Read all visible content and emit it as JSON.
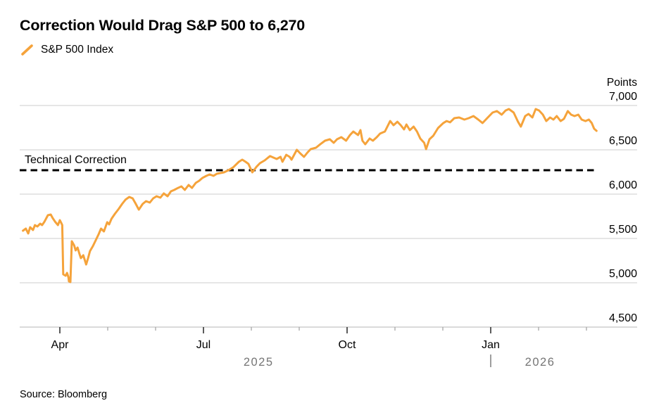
{
  "header": {
    "title": "Correction Would Drag S&P 500 to 6,270",
    "legend": {
      "series_label": "S&P 500 Index",
      "swatch_color": "#F5A33B"
    }
  },
  "footer": {
    "source": "Source: Bloomberg"
  },
  "colors": {
    "line": "#F5A33B",
    "grid": "#d7d7d7",
    "axis_line": "#c3c3c3",
    "tick_major": "#333333",
    "tick_minor": "#a8a8a8",
    "year_text": "#757575",
    "text": "#000000",
    "reference": "#000000"
  },
  "chart_data": {
    "type": "line",
    "title": "Correction Would Drag S&P 500 to 6,270",
    "y_axis": {
      "unit_label": "Points",
      "ticks": [
        7000,
        6500,
        6000,
        5500,
        5000,
        4500
      ],
      "tick_labels": [
        "7,000",
        "6,500",
        "6,000",
        "5,500",
        "5,000",
        "4,500"
      ],
      "ylim": [
        4500,
        7000
      ],
      "grid": "horizontal"
    },
    "x_axis": {
      "unit": "months, t=0 is Mar 1 2025, t=1 is Apr 1 2025",
      "major_ticks": [
        {
          "t": 1,
          "label": "Apr"
        },
        {
          "t": 4,
          "label": "Jul"
        },
        {
          "t": 7,
          "label": "Oct"
        },
        {
          "t": 10,
          "label": "Jan"
        }
      ],
      "minor_ticks_t": [
        2,
        3,
        5,
        6,
        8,
        9,
        11,
        12
      ],
      "year_labels": [
        {
          "label": "2025",
          "t": 5.15
        },
        {
          "label": "2026",
          "t": 11.03
        }
      ],
      "year_divider_t": 10
    },
    "reference_line": {
      "label": "Technical Correction",
      "value": 6270,
      "style": "dashed"
    },
    "legend_position": "top-left",
    "series": [
      {
        "name": "S&P 500 Index",
        "color": "#F5A33B",
        "points": [
          [
            0.23,
            5587
          ],
          [
            0.29,
            5611
          ],
          [
            0.34,
            5556
          ],
          [
            0.38,
            5627
          ],
          [
            0.44,
            5595
          ],
          [
            0.48,
            5651
          ],
          [
            0.53,
            5635
          ],
          [
            0.59,
            5667
          ],
          [
            0.63,
            5651
          ],
          [
            0.68,
            5690
          ],
          [
            0.75,
            5762
          ],
          [
            0.81,
            5770
          ],
          [
            0.85,
            5730
          ],
          [
            0.9,
            5690
          ],
          [
            0.96,
            5651
          ],
          [
            1.0,
            5706
          ],
          [
            1.03,
            5675
          ],
          [
            1.05,
            5651
          ],
          [
            1.07,
            5095
          ],
          [
            1.12,
            5079
          ],
          [
            1.15,
            5111
          ],
          [
            1.18,
            5063
          ],
          [
            1.19,
            5016
          ],
          [
            1.22,
            5008
          ],
          [
            1.25,
            5468
          ],
          [
            1.3,
            5421
          ],
          [
            1.33,
            5365
          ],
          [
            1.37,
            5397
          ],
          [
            1.41,
            5325
          ],
          [
            1.44,
            5278
          ],
          [
            1.49,
            5310
          ],
          [
            1.55,
            5206
          ],
          [
            1.59,
            5278
          ],
          [
            1.63,
            5357
          ],
          [
            1.69,
            5413
          ],
          [
            1.74,
            5468
          ],
          [
            1.81,
            5548
          ],
          [
            1.86,
            5611
          ],
          [
            1.92,
            5579
          ],
          [
            1.99,
            5683
          ],
          [
            2.03,
            5659
          ],
          [
            2.08,
            5722
          ],
          [
            2.15,
            5778
          ],
          [
            2.23,
            5833
          ],
          [
            2.3,
            5889
          ],
          [
            2.37,
            5937
          ],
          [
            2.45,
            5968
          ],
          [
            2.52,
            5952
          ],
          [
            2.58,
            5897
          ],
          [
            2.65,
            5825
          ],
          [
            2.73,
            5889
          ],
          [
            2.8,
            5921
          ],
          [
            2.88,
            5905
          ],
          [
            2.95,
            5952
          ],
          [
            3.02,
            5976
          ],
          [
            3.1,
            5960
          ],
          [
            3.17,
            6008
          ],
          [
            3.25,
            5976
          ],
          [
            3.32,
            6032
          ],
          [
            3.39,
            6048
          ],
          [
            3.47,
            6071
          ],
          [
            3.54,
            6087
          ],
          [
            3.61,
            6048
          ],
          [
            3.69,
            6103
          ],
          [
            3.76,
            6071
          ],
          [
            3.84,
            6127
          ],
          [
            3.91,
            6151
          ],
          [
            3.98,
            6183
          ],
          [
            4.06,
            6206
          ],
          [
            4.13,
            6222
          ],
          [
            4.21,
            6206
          ],
          [
            4.28,
            6230
          ],
          [
            4.43,
            6246
          ],
          [
            4.52,
            6270
          ],
          [
            4.62,
            6302
          ],
          [
            4.74,
            6365
          ],
          [
            4.81,
            6389
          ],
          [
            4.88,
            6365
          ],
          [
            4.94,
            6341
          ],
          [
            5.02,
            6246
          ],
          [
            5.11,
            6310
          ],
          [
            5.18,
            6349
          ],
          [
            5.28,
            6381
          ],
          [
            5.39,
            6429
          ],
          [
            5.46,
            6413
          ],
          [
            5.53,
            6397
          ],
          [
            5.61,
            6421
          ],
          [
            5.65,
            6365
          ],
          [
            5.73,
            6444
          ],
          [
            5.8,
            6421
          ],
          [
            5.84,
            6389
          ],
          [
            5.95,
            6500
          ],
          [
            6.02,
            6460
          ],
          [
            6.1,
            6421
          ],
          [
            6.17,
            6468
          ],
          [
            6.24,
            6508
          ],
          [
            6.35,
            6524
          ],
          [
            6.44,
            6563
          ],
          [
            6.54,
            6603
          ],
          [
            6.64,
            6619
          ],
          [
            6.72,
            6579
          ],
          [
            6.79,
            6619
          ],
          [
            6.88,
            6643
          ],
          [
            6.98,
            6603
          ],
          [
            7.06,
            6667
          ],
          [
            7.13,
            6706
          ],
          [
            7.23,
            6667
          ],
          [
            7.28,
            6722
          ],
          [
            7.32,
            6603
          ],
          [
            7.38,
            6563
          ],
          [
            7.47,
            6627
          ],
          [
            7.54,
            6603
          ],
          [
            7.62,
            6643
          ],
          [
            7.69,
            6683
          ],
          [
            7.79,
            6706
          ],
          [
            7.9,
            6825
          ],
          [
            7.97,
            6778
          ],
          [
            8.05,
            6817
          ],
          [
            8.12,
            6778
          ],
          [
            8.19,
            6730
          ],
          [
            8.24,
            6786
          ],
          [
            8.31,
            6722
          ],
          [
            8.39,
            6762
          ],
          [
            8.46,
            6706
          ],
          [
            8.53,
            6627
          ],
          [
            8.61,
            6579
          ],
          [
            8.65,
            6508
          ],
          [
            8.72,
            6619
          ],
          [
            8.8,
            6659
          ],
          [
            8.9,
            6746
          ],
          [
            9.01,
            6802
          ],
          [
            9.08,
            6825
          ],
          [
            9.15,
            6810
          ],
          [
            9.24,
            6857
          ],
          [
            9.34,
            6865
          ],
          [
            9.45,
            6841
          ],
          [
            9.54,
            6857
          ],
          [
            9.64,
            6881
          ],
          [
            9.74,
            6841
          ],
          [
            9.83,
            6802
          ],
          [
            9.94,
            6865
          ],
          [
            10.04,
            6921
          ],
          [
            10.13,
            6937
          ],
          [
            10.23,
            6897
          ],
          [
            10.31,
            6944
          ],
          [
            10.38,
            6960
          ],
          [
            10.48,
            6921
          ],
          [
            10.57,
            6817
          ],
          [
            10.63,
            6762
          ],
          [
            10.72,
            6881
          ],
          [
            10.79,
            6905
          ],
          [
            10.87,
            6865
          ],
          [
            10.94,
            6960
          ],
          [
            11.01,
            6944
          ],
          [
            11.09,
            6897
          ],
          [
            11.16,
            6825
          ],
          [
            11.24,
            6865
          ],
          [
            11.31,
            6841
          ],
          [
            11.38,
            6881
          ],
          [
            11.46,
            6825
          ],
          [
            11.53,
            6849
          ],
          [
            11.61,
            6937
          ],
          [
            11.68,
            6897
          ],
          [
            11.75,
            6881
          ],
          [
            11.83,
            6897
          ],
          [
            11.9,
            6841
          ],
          [
            11.98,
            6825
          ],
          [
            12.05,
            6841
          ],
          [
            12.11,
            6802
          ],
          [
            12.16,
            6738
          ],
          [
            12.21,
            6714
          ]
        ]
      }
    ]
  }
}
